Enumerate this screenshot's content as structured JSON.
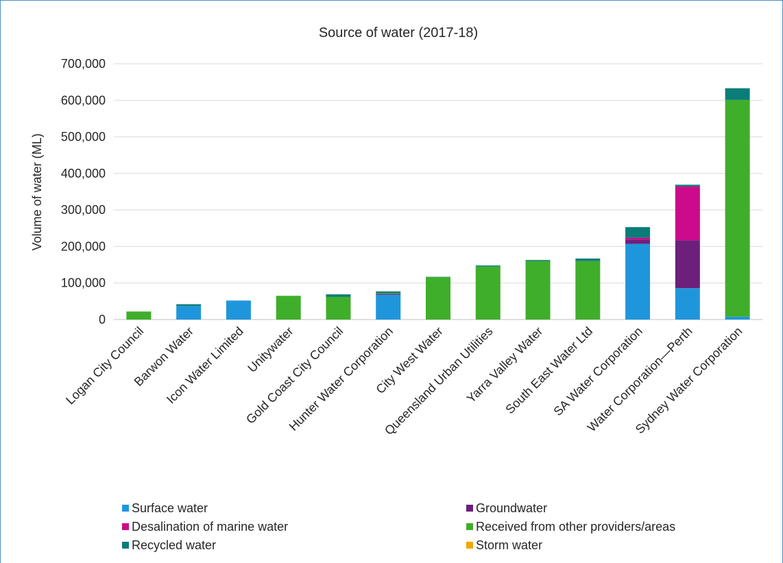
{
  "chart_data": {
    "type": "bar",
    "stacked": true,
    "title": "Source of water (2017-18)",
    "xlabel": "",
    "ylabel": "Volume of water (ML)",
    "ylim": [
      0,
      700000
    ],
    "yticks": [
      0,
      100000,
      200000,
      300000,
      400000,
      500000,
      600000,
      700000
    ],
    "ytick_labels": [
      "0",
      "100,000",
      "200,000",
      "300,000",
      "400,000",
      "500,000",
      "600,000",
      "700,000"
    ],
    "grid": "horizontal",
    "legend_position": "bottom",
    "categories": [
      "Logan City Council",
      "Barwon Water",
      "Icon Water Limited",
      "Unitywater",
      "Gold Coast City Council",
      "Hunter Water Corporation",
      "City West Water",
      "Queensland Urban Utilities",
      "Yarra Valley Water",
      "South East Water Ltd",
      "SA Water Corporation",
      "Water Corporation—Perth",
      "Sydney Water Corporation"
    ],
    "series": [
      {
        "name": "Surface water",
        "color": "#1f96dc",
        "values": [
          0,
          37000,
          52000,
          0,
          0,
          68000,
          0,
          0,
          0,
          0,
          207000,
          86000,
          8000
        ]
      },
      {
        "name": "Groundwater",
        "color": "#6d1f7c",
        "values": [
          0,
          0,
          0,
          0,
          0,
          3000,
          0,
          0,
          0,
          0,
          12000,
          131000,
          0
        ]
      },
      {
        "name": "Desalination of marine water",
        "color": "#cc0a8c",
        "values": [
          0,
          0,
          0,
          0,
          0,
          0,
          0,
          0,
          0,
          0,
          5000,
          147000,
          0
        ]
      },
      {
        "name": "Received from other providers/areas",
        "color": "#3fae2a",
        "values": [
          22000,
          0,
          0,
          65000,
          62000,
          2000,
          116000,
          145000,
          160000,
          160000,
          0,
          0,
          593000
        ]
      },
      {
        "name": "Recycled water",
        "color": "#0a7d78",
        "values": [
          0,
          5000,
          0,
          0,
          7000,
          4000,
          1000,
          3000,
          3000,
          7000,
          29000,
          5000,
          32000
        ]
      },
      {
        "name": "Storm water",
        "color": "#f0a800",
        "values": [
          0,
          0,
          0,
          0,
          0,
          0,
          0,
          0,
          0,
          0,
          0,
          0,
          0
        ]
      }
    ]
  }
}
